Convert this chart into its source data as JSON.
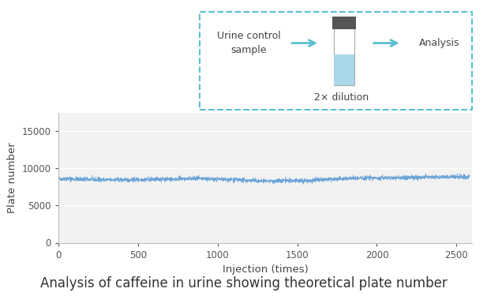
{
  "title": "Analysis of caffeine in urine showing theoretical plate number",
  "xlabel": "Injection (times)",
  "ylabel": "Plate number",
  "xlim": [
    0,
    2600
  ],
  "ylim": [
    0,
    17500
  ],
  "yticks": [
    0,
    5000,
    10000,
    15000
  ],
  "xticks": [
    0,
    500,
    1000,
    1500,
    2000,
    2500
  ],
  "n_points": 2580,
  "base_value": 8700,
  "noise_amplitude": 280,
  "line_color": "#5b9bd5",
  "background_color": "#ffffff",
  "plot_bg_color": "#f2f2f2",
  "grid_color": "#ffffff",
  "axis_color": "#bbbbbb",
  "title_fontsize": 12,
  "label_fontsize": 9.5,
  "tick_fontsize": 8.5,
  "legend_box_color": "#5bbfcf",
  "legend_text1": "Urine control\nsample",
  "legend_text2": "Analysis",
  "legend_text3": "2× dilution",
  "vial_body_color": "#ffffff",
  "vial_liquid_color": "#a8d8ea",
  "vial_cap_color": "#555555",
  "arrow_color": "#5bbfcf"
}
